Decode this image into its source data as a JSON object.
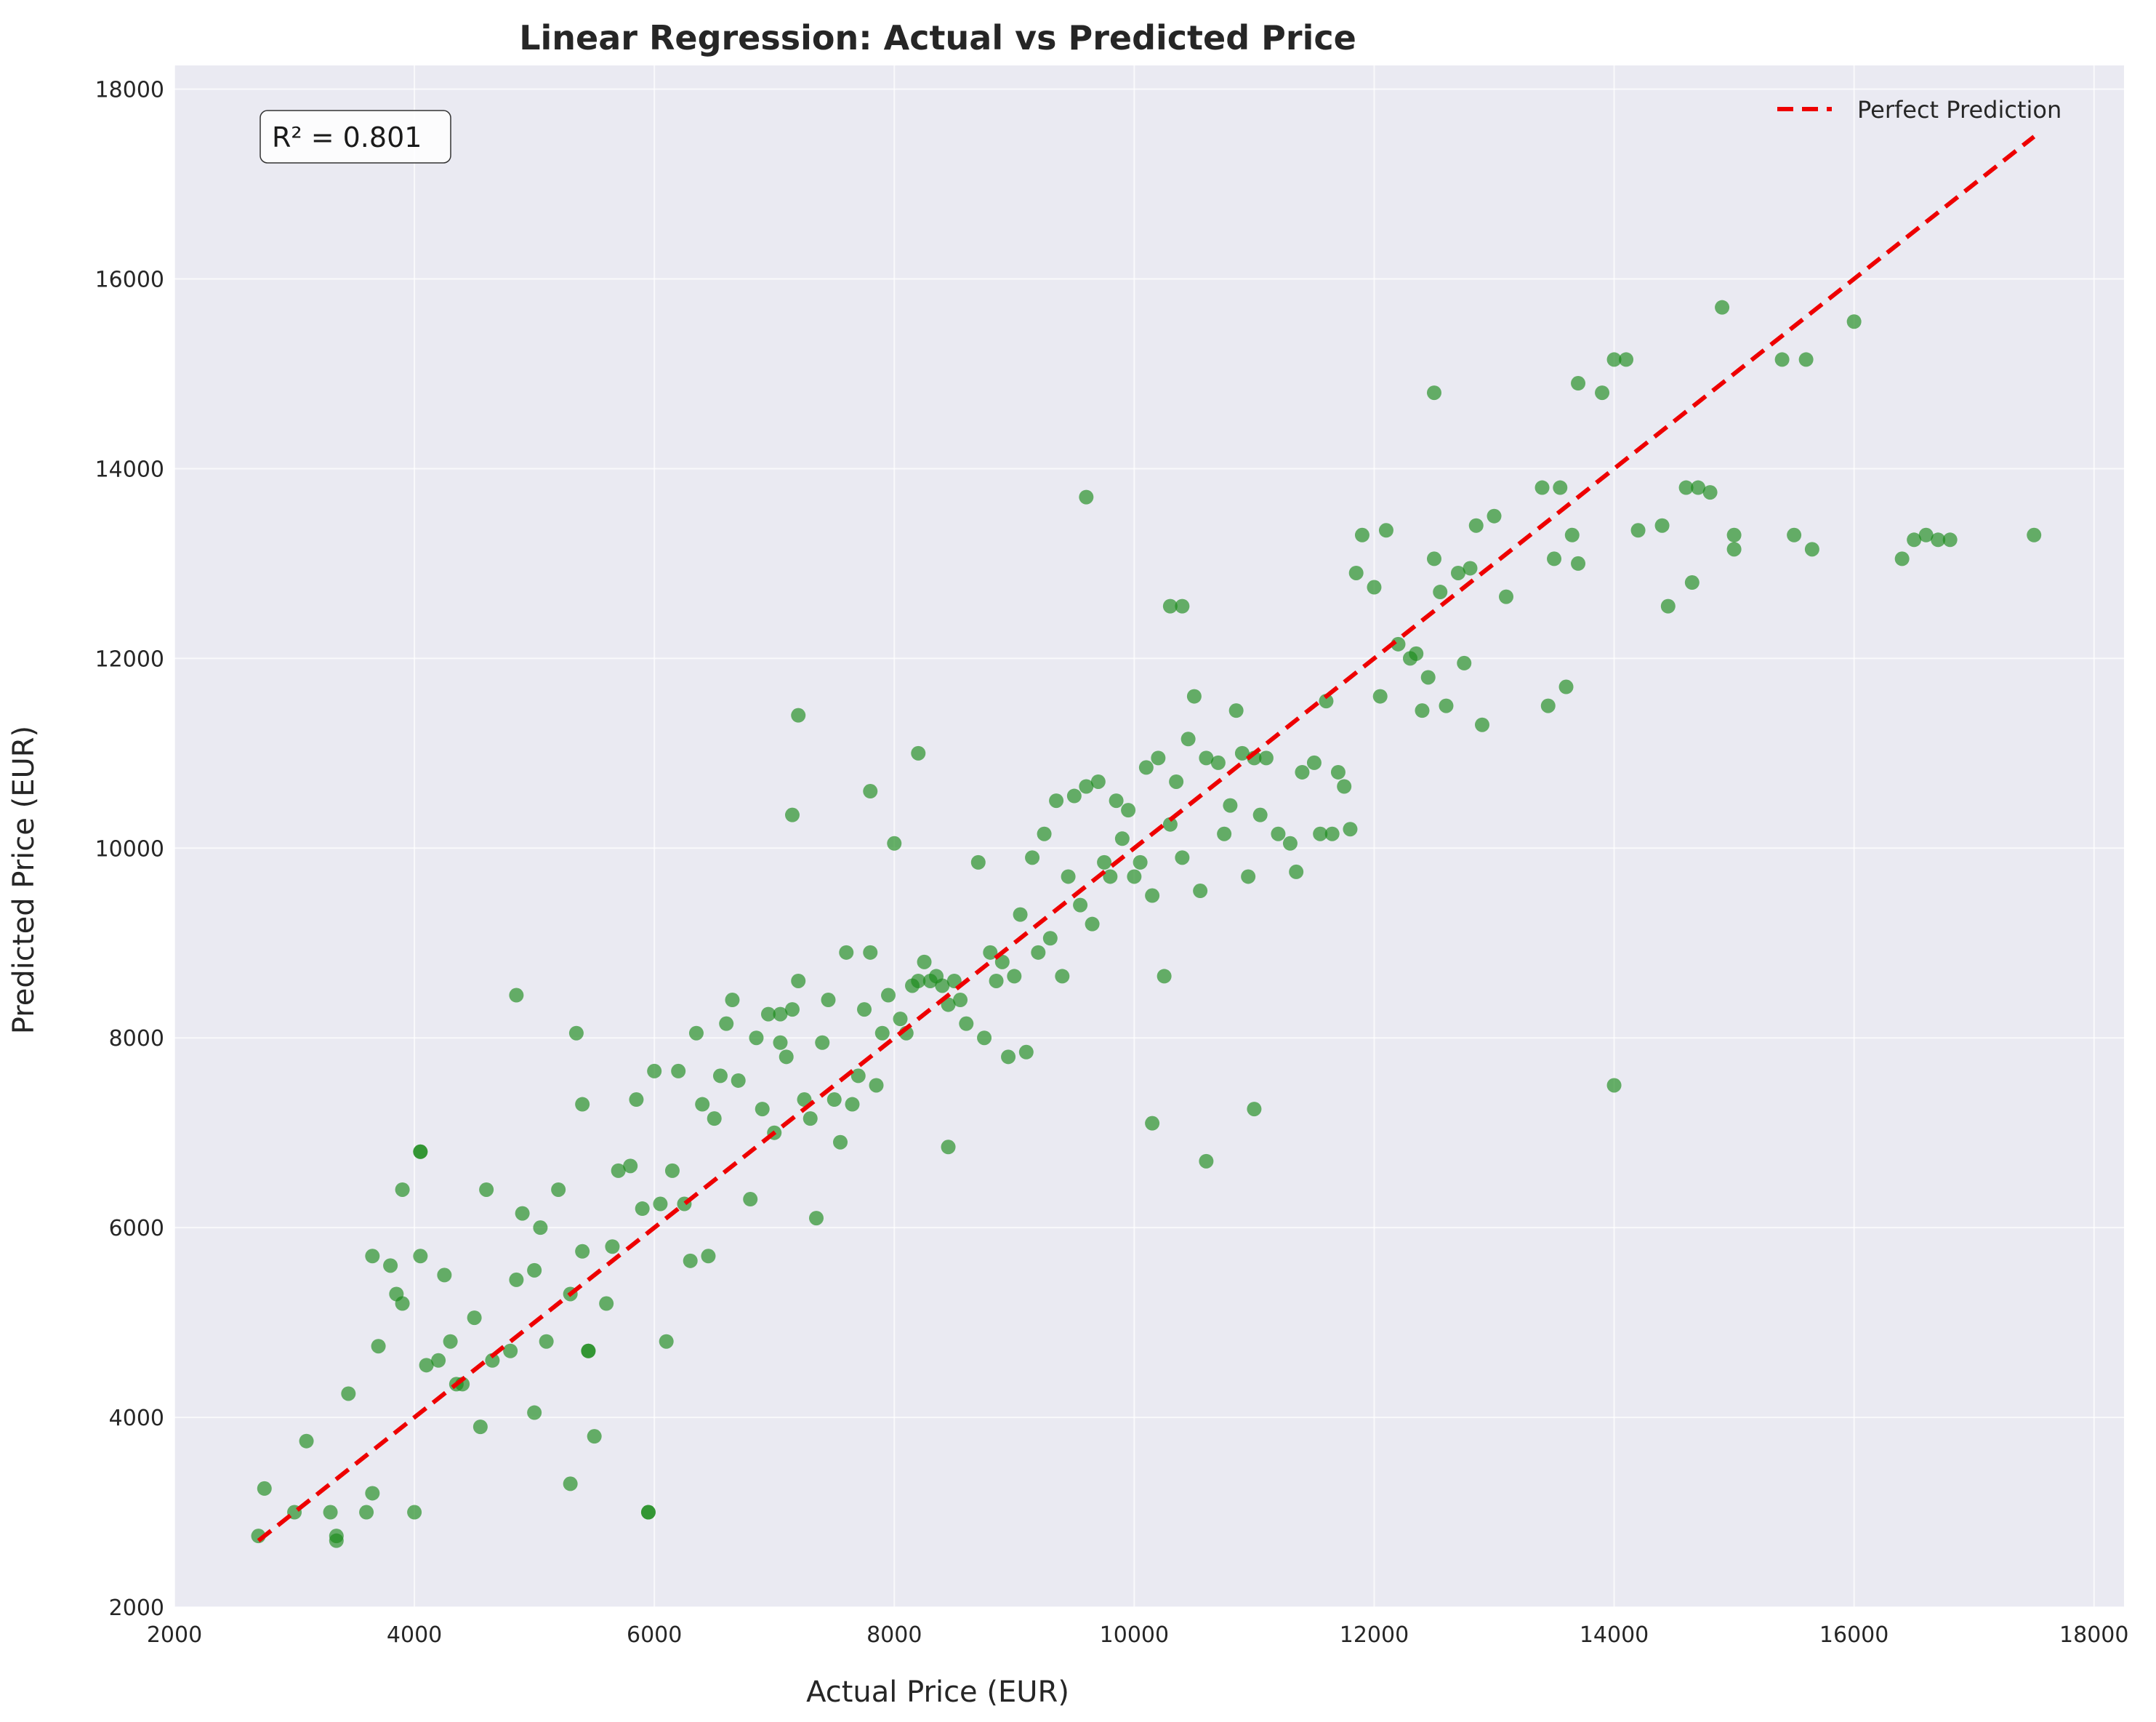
{
  "chart_data": {
    "type": "scatter",
    "title": "Linear Regression: Actual vs Predicted Price",
    "xlabel": "Actual Price (EUR)",
    "ylabel": "Predicted Price (EUR)",
    "xlim": [
      2000,
      18250
    ],
    "ylim": [
      2000,
      18250
    ],
    "xticks": [
      2000,
      4000,
      6000,
      8000,
      10000,
      12000,
      14000,
      16000,
      18000
    ],
    "yticks": [
      2000,
      4000,
      6000,
      8000,
      10000,
      12000,
      14000,
      16000,
      18000
    ],
    "grid": true,
    "legend_position": "top-right",
    "annotation": "R² = 0.801",
    "colors": {
      "points": "#1a8a1a",
      "line": "#ee0000",
      "plot_bg": "#eaeaf2",
      "grid": "#ffffff"
    },
    "reference_line": {
      "name": "Perfect Prediction",
      "x": [
        2700,
        17500
      ],
      "y": [
        2700,
        17500
      ]
    },
    "series": [
      {
        "x": [
          2700,
          2750,
          3000,
          3100,
          3300,
          3350,
          3450,
          3600,
          3650,
          3650,
          3700,
          3800,
          3850,
          3900,
          3900,
          4000,
          4050,
          4050,
          4100,
          4200,
          4250,
          4300,
          4350,
          4400,
          4500,
          4550,
          4600,
          4650,
          4800,
          4850,
          4900,
          5000,
          5000,
          5050,
          5100,
          5200,
          5300,
          5300,
          5400,
          5400,
          5450,
          5500,
          5600,
          5650,
          5700,
          5800,
          5850,
          5900,
          5950,
          6000,
          6050,
          6100,
          6150,
          6200,
          6300,
          6350,
          6400,
          6450,
          6500,
          6550,
          6600,
          6650,
          6700,
          6800,
          6850,
          6900,
          6950,
          7000,
          7050,
          7100,
          7150,
          7200,
          7250,
          7300,
          7350,
          7400,
          7450,
          7500,
          7550,
          7600,
          7650,
          7700,
          7750,
          7800,
          7850,
          7900,
          7950,
          8000,
          8050,
          8100,
          8150,
          8200,
          8250,
          8300,
          8350,
          8400,
          8450,
          8500,
          8550,
          8600,
          8700,
          8750,
          8800,
          8850,
          8900,
          8950,
          9000,
          9050,
          9100,
          9150,
          9200,
          9250,
          9300,
          9350,
          9400,
          9450,
          9500,
          9550,
          9600,
          9650,
          9700,
          9750,
          9800,
          9850,
          9900,
          9950,
          10000,
          10050,
          10100,
          10150,
          10200,
          10250,
          10300,
          10350,
          10400,
          10450,
          10500,
          10550,
          10600,
          10700,
          10750,
          10800,
          10850,
          10900,
          10950,
          11000,
          11050,
          11100,
          11200,
          11300,
          11350,
          11400,
          11500,
          11550,
          11600,
          11650,
          11700,
          11750,
          11800,
          11850,
          11900,
          12000,
          12050,
          12100,
          12200,
          12300,
          12350,
          12400,
          12450,
          12500,
          12550,
          12600,
          12700,
          12750,
          12800,
          12850,
          12900,
          13000,
          13100,
          13400,
          13450,
          13500,
          13550,
          13600,
          13650,
          13700,
          13900,
          14000,
          14100,
          14200,
          14400,
          14450,
          14600,
          14650,
          14700,
          14800,
          14900,
          15000,
          15000,
          15400,
          15500,
          15600,
          15650,
          16000,
          16400,
          16500,
          16600,
          16700,
          16800,
          17500,
          9600,
          7200,
          7150,
          8200,
          7800,
          10300,
          10400,
          8450,
          14000,
          13700,
          12500,
          11000,
          10600,
          10150,
          7050,
          6250,
          5450,
          3350,
          5950,
          4850,
          4050,
          5350
        ],
        "y": [
          2750,
          3250,
          3000,
          3750,
          3000,
          2750,
          4250,
          3000,
          3200,
          5700,
          4750,
          5600,
          5300,
          5200,
          6400,
          3000,
          5700,
          6800,
          4550,
          4600,
          5500,
          4800,
          4350,
          4350,
          5050,
          3900,
          6400,
          4600,
          4700,
          5450,
          6150,
          4050,
          5550,
          6000,
          4800,
          6400,
          3300,
          5300,
          5750,
          7300,
          4700,
          3800,
          5200,
          5800,
          6600,
          6650,
          7350,
          6200,
          3000,
          7650,
          6250,
          4800,
          6600,
          7650,
          5650,
          8050,
          7300,
          5700,
          7150,
          7600,
          8150,
          8400,
          7550,
          6300,
          8000,
          7250,
          8250,
          7000,
          8250,
          7800,
          8300,
          8600,
          7350,
          7150,
          6100,
          7950,
          8400,
          7350,
          6900,
          8900,
          7300,
          7600,
          8300,
          8900,
          7500,
          8050,
          8450,
          10050,
          8200,
          8050,
          8550,
          8600,
          8800,
          8600,
          8650,
          8550,
          8350,
          8600,
          8400,
          8150,
          9850,
          8000,
          8900,
          8600,
          8800,
          7800,
          8650,
          9300,
          7850,
          9900,
          8900,
          10150,
          9050,
          10500,
          8650,
          9700,
          10550,
          9400,
          10650,
          9200,
          10700,
          9850,
          9700,
          10500,
          10100,
          10400,
          9700,
          9850,
          10850,
          9500,
          10950,
          8650,
          10250,
          10700,
          9900,
          11150,
          11600,
          9550,
          10950,
          10900,
          10150,
          10450,
          11450,
          11000,
          9700,
          10950,
          10350,
          10950,
          10150,
          10050,
          9750,
          10800,
          10900,
          10150,
          11550,
          10150,
          10800,
          10650,
          10200,
          12900,
          13300,
          12750,
          11600,
          13350,
          12150,
          12000,
          12050,
          11450,
          11800,
          13050,
          12700,
          11500,
          12900,
          11950,
          12950,
          13400,
          11300,
          13500,
          12650,
          13800,
          11500,
          13050,
          13800,
          11700,
          13300,
          14900,
          14800,
          15150,
          15150,
          13350,
          13400,
          12550,
          13800,
          12800,
          13800,
          13750,
          15700,
          13300,
          13150,
          15150,
          13300,
          15150,
          13150,
          15550,
          13050,
          13250,
          13300,
          13250,
          13250,
          13300,
          13700,
          11400,
          10350,
          11000,
          10600,
          12550,
          12550,
          6850,
          7500,
          13000,
          14800,
          7250,
          6700,
          7100,
          7950,
          6250,
          4700,
          2700,
          3000,
          8450,
          6800,
          8050
        ]
      }
    ]
  }
}
